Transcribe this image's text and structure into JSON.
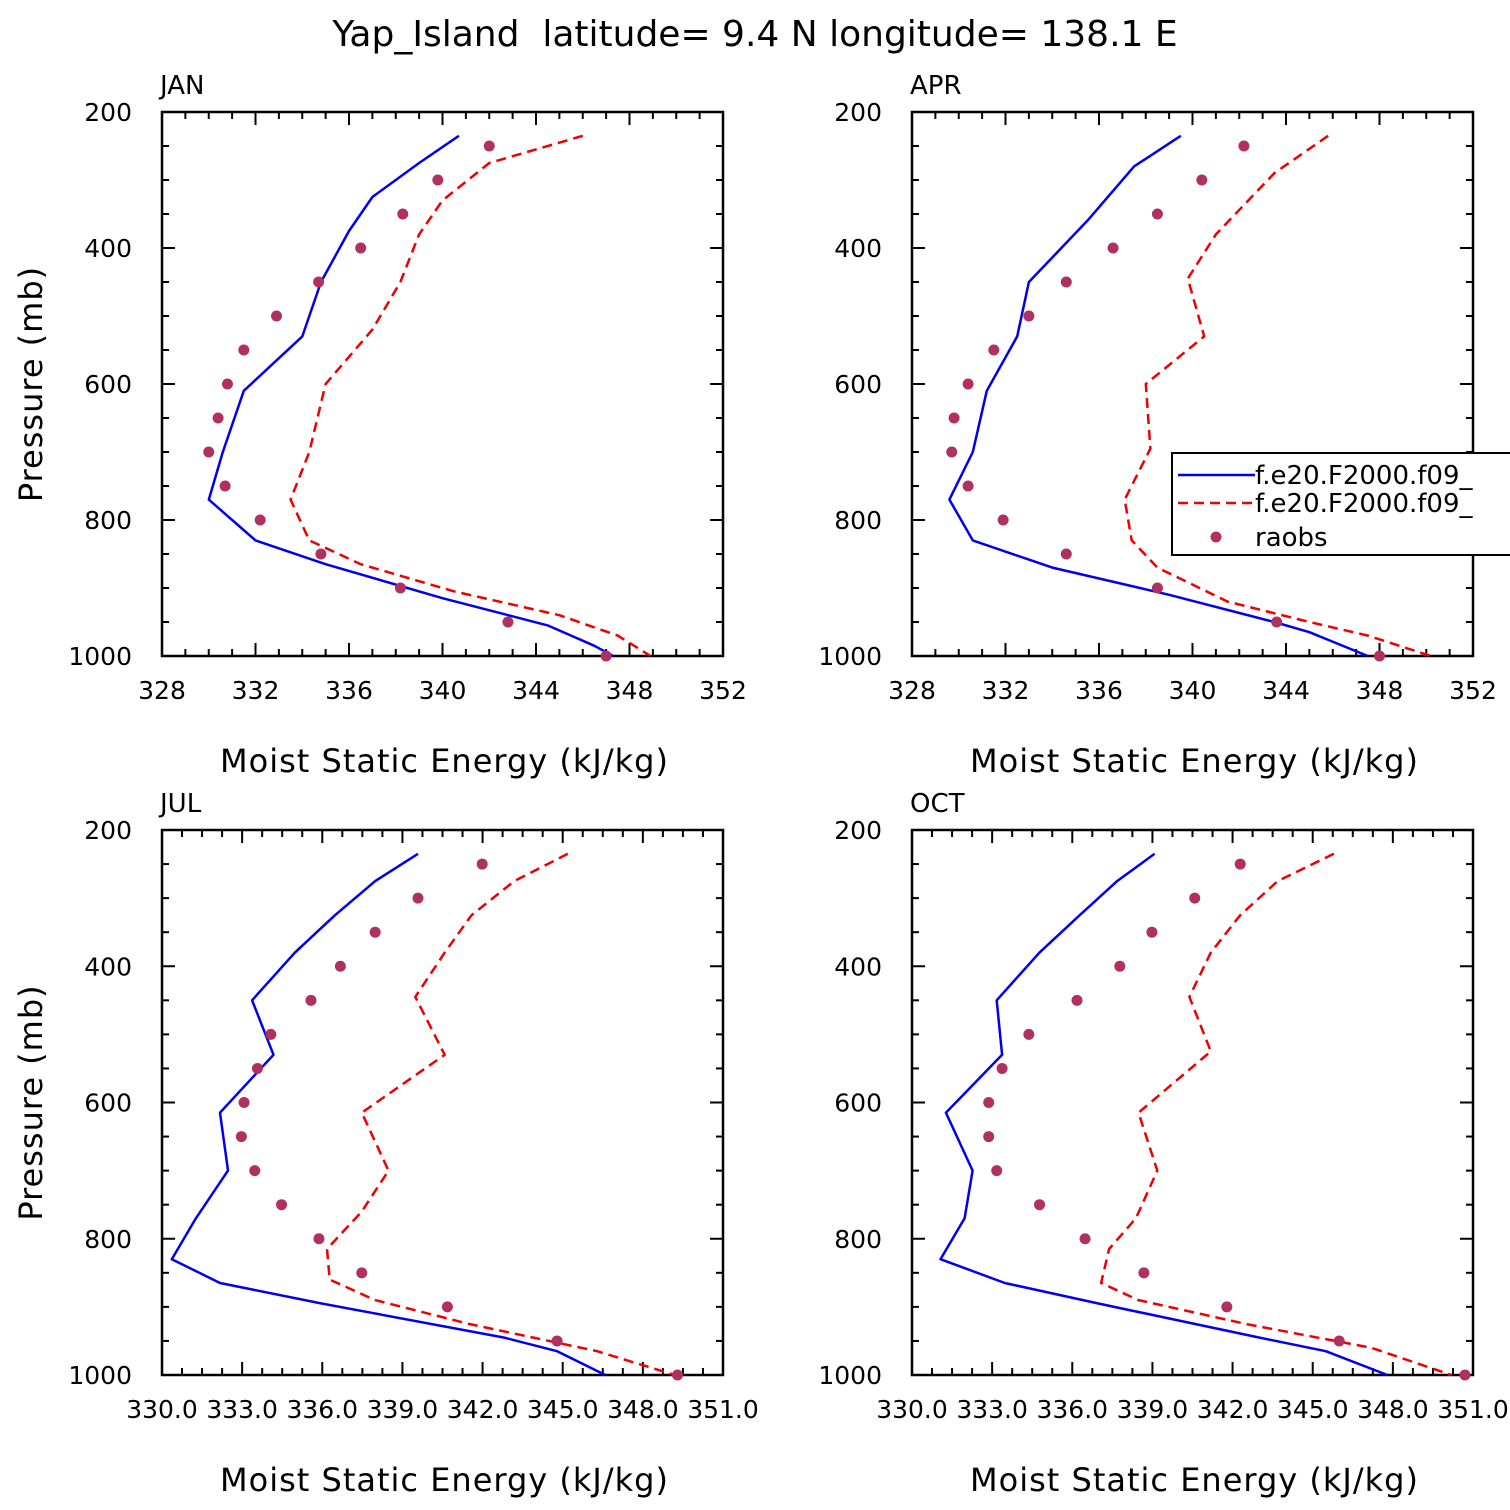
{
  "title": "Yap_Island  latitude= 9.4 N longitude= 138.1 E",
  "colors": {
    "model1": "#0000ee",
    "model2": "#ee0000",
    "raobs": "#b03060",
    "axis": "#000000"
  },
  "legend": {
    "entries": [
      {
        "label": "f.e20.F2000.f09_",
        "style": "solid",
        "color": "#0000ee"
      },
      {
        "label": "f.e20.F2000.f09_",
        "style": "dashed",
        "color": "#ee0000"
      },
      {
        "label": "raobs",
        "style": "marker",
        "color": "#b03060"
      }
    ]
  },
  "chart_data": [
    {
      "type": "line",
      "panel": "JAN",
      "xlabel": "Moist Static Energy (kJ/kg)",
      "ylabel": "Pressure (mb)",
      "xlim": [
        328,
        352
      ],
      "ylim": [
        1000,
        200
      ],
      "xticks": [
        "328",
        "332",
        "336",
        "340",
        "344",
        "348",
        "352"
      ],
      "yticks": [
        "200",
        "400",
        "600",
        "800",
        "1000"
      ],
      "series": [
        {
          "style": "solid",
          "color": "#0000ee",
          "x": [
            340.7,
            339.0,
            337.0,
            336.0,
            334.8,
            334.0,
            331.5,
            330.6,
            330.0,
            332.0,
            335.0,
            340.0,
            344.5,
            346.5,
            347.3
          ],
          "y": [
            235,
            275,
            325,
            375,
            450,
            530,
            610,
            700,
            770,
            830,
            865,
            915,
            955,
            985,
            1000
          ]
        },
        {
          "style": "dashed",
          "color": "#ee0000",
          "x": [
            346.0,
            342.0,
            340.0,
            339.0,
            338.2,
            337.0,
            335.0,
            334.3,
            333.5,
            334.3,
            336.5,
            340.5,
            345.0,
            347.5,
            348.9
          ],
          "y": [
            235,
            275,
            330,
            380,
            450,
            520,
            600,
            700,
            770,
            830,
            865,
            905,
            940,
            970,
            1000
          ]
        }
      ],
      "raobs": {
        "x": [
          342.0,
          339.8,
          338.3,
          336.5,
          334.7,
          332.9,
          331.5,
          330.8,
          330.4,
          330.0,
          330.7,
          332.2,
          334.8,
          338.2,
          342.8,
          347.0
        ],
        "y": [
          250,
          300,
          350,
          400,
          450,
          500,
          550,
          600,
          650,
          700,
          750,
          800,
          850,
          900,
          950,
          1000
        ]
      }
    },
    {
      "type": "line",
      "panel": "APR",
      "xlabel": "Moist Static Energy (kJ/kg)",
      "ylabel": "",
      "xlim": [
        328,
        352
      ],
      "ylim": [
        1000,
        200
      ],
      "xticks": [
        "328",
        "332",
        "336",
        "340",
        "344",
        "348",
        "352"
      ],
      "yticks": [
        "200",
        "400",
        "600",
        "800",
        "1000"
      ],
      "series": [
        {
          "style": "solid",
          "color": "#0000ee",
          "x": [
            339.5,
            337.5,
            335.5,
            333.0,
            332.5,
            331.2,
            330.6,
            329.6,
            330.6,
            334.0,
            339.0,
            343.5,
            345.0,
            347.5
          ],
          "y": [
            235,
            280,
            360,
            450,
            530,
            610,
            700,
            770,
            830,
            870,
            910,
            950,
            965,
            1000
          ]
        },
        {
          "style": "dashed",
          "color": "#ee0000",
          "x": [
            345.8,
            343.5,
            341.0,
            339.8,
            340.5,
            338.0,
            338.2,
            337.1,
            337.4,
            338.5,
            341.5,
            345.0,
            347.5,
            350.2
          ],
          "y": [
            235,
            290,
            380,
            445,
            530,
            600,
            695,
            770,
            830,
            870,
            920,
            950,
            970,
            1000
          ]
        }
      ],
      "raobs": {
        "x": [
          342.2,
          340.4,
          338.5,
          336.6,
          334.6,
          333.0,
          331.5,
          330.4,
          329.8,
          329.7,
          330.4,
          331.9,
          334.6,
          338.5,
          343.6,
          348.0
        ],
        "y": [
          250,
          300,
          350,
          400,
          450,
          500,
          550,
          600,
          650,
          700,
          750,
          800,
          850,
          900,
          950,
          1000
        ]
      }
    },
    {
      "type": "line",
      "panel": "JUL",
      "xlabel": "Moist Static Energy (kJ/kg)",
      "ylabel": "Pressure (mb)",
      "xlim": [
        330.0333,
        351.0
      ],
      "ylim": [
        1000,
        200
      ],
      "xticks": [
        "330.0",
        "333.0",
        "336.0",
        "339.0",
        "342.0",
        "345.0",
        "348.0",
        "351.0"
      ],
      "yticks": [
        "200",
        "400",
        "600",
        "800",
        "1000"
      ],
      "series": [
        {
          "style": "solid",
          "color": "#0000ee",
          "x": [
            339.6,
            338.0,
            336.5,
            335.0,
            333.4,
            334.2,
            332.2,
            332.5,
            331.3,
            330.4,
            332.2,
            336.0,
            342.8,
            344.8,
            346.6
          ],
          "y": [
            235,
            275,
            325,
            380,
            450,
            530,
            615,
            700,
            770,
            830,
            865,
            895,
            945,
            965,
            1000
          ]
        },
        {
          "style": "dashed",
          "color": "#ee0000",
          "x": [
            345.2,
            343.2,
            341.6,
            340.6,
            339.5,
            340.6,
            337.5,
            338.5,
            337.5,
            336.2,
            336.3,
            338.0,
            341.5,
            346.3,
            349.2
          ],
          "y": [
            235,
            275,
            325,
            380,
            445,
            530,
            615,
            700,
            760,
            815,
            860,
            890,
            925,
            965,
            1000
          ]
        }
      ],
      "raobs": {
        "x": [
          342.0,
          339.6,
          338.0,
          336.7,
          335.6,
          334.1,
          333.6,
          333.1,
          333.0,
          333.5,
          334.5,
          335.9,
          337.5,
          340.7,
          344.8,
          349.3
        ],
        "y": [
          250,
          300,
          350,
          400,
          450,
          500,
          550,
          600,
          650,
          700,
          750,
          800,
          850,
          900,
          950,
          1000
        ]
      }
    },
    {
      "type": "line",
      "panel": "OCT",
      "xlabel": "Moist Static Energy (kJ/kg)",
      "ylabel": "",
      "xlim": [
        330.0333,
        351.0
      ],
      "ylim": [
        1000,
        200
      ],
      "xticks": [
        "330.0",
        "333.0",
        "336.0",
        "339.0",
        "342.0",
        "345.0",
        "348.0",
        "351.0"
      ],
      "yticks": [
        "200",
        "400",
        "600",
        "800",
        "1000"
      ],
      "series": [
        {
          "style": "solid",
          "color": "#0000ee",
          "x": [
            339.1,
            337.7,
            336.3,
            334.8,
            333.2,
            333.4,
            331.3,
            332.3,
            332.0,
            331.1,
            333.5,
            337.0,
            343.0,
            345.5,
            347.8
          ],
          "y": [
            235,
            275,
            325,
            380,
            450,
            530,
            615,
            700,
            770,
            830,
            865,
            895,
            945,
            965,
            1000
          ]
        },
        {
          "style": "dashed",
          "color": "#ee0000",
          "x": [
            345.8,
            343.7,
            342.3,
            341.2,
            340.4,
            341.2,
            338.5,
            339.2,
            338.4,
            337.4,
            337.1,
            338.5,
            342.5,
            347.2,
            350.2
          ],
          "y": [
            235,
            275,
            325,
            380,
            445,
            525,
            615,
            700,
            770,
            815,
            865,
            890,
            925,
            960,
            1000
          ]
        }
      ],
      "raobs": {
        "x": [
          342.3,
          340.6,
          339.0,
          337.8,
          336.2,
          334.4,
          333.4,
          332.9,
          332.9,
          333.2,
          334.8,
          336.5,
          338.7,
          341.8,
          346.0,
          350.7
        ],
        "y": [
          250,
          300,
          350,
          400,
          450,
          500,
          550,
          600,
          650,
          700,
          750,
          800,
          850,
          900,
          950,
          1000
        ]
      }
    }
  ]
}
